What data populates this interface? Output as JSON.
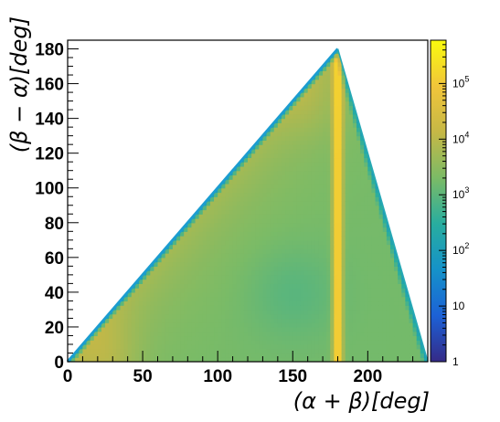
{
  "chart_data": {
    "type": "heatmap",
    "title": "",
    "xlabel": "(α + β)[deg]",
    "ylabel": "(β − α)[deg]",
    "xlim": [
      0,
      240
    ],
    "ylim": [
      0,
      185
    ],
    "x_ticks": [
      0,
      50,
      100,
      150,
      200
    ],
    "y_ticks": [
      0,
      20,
      40,
      60,
      80,
      100,
      120,
      140,
      160,
      180
    ],
    "z_scale": "log",
    "zlim": [
      1,
      600000
    ],
    "colorbar_ticks": [
      {
        "value": 1,
        "label": "1"
      },
      {
        "value": 10,
        "label": "10"
      },
      {
        "value": 100,
        "label": "10",
        "exp": "2"
      },
      {
        "value": 1000,
        "label": "10",
        "exp": "3"
      },
      {
        "value": 10000,
        "label": "10",
        "exp": "4"
      },
      {
        "value": 100000,
        "label": "10",
        "exp": "5"
      }
    ],
    "colormap": [
      "#352a87",
      "#1c61d6",
      "#1592c9",
      "#28ad9f",
      "#7bbb66",
      "#c6b846",
      "#f1c53a",
      "#f9fb0e"
    ],
    "domain_vertices": [
      [
        0,
        0
      ],
      [
        180,
        180
      ],
      [
        240,
        0
      ]
    ],
    "ridge_x": 180,
    "grid": false,
    "legend": "colorbar-right"
  }
}
